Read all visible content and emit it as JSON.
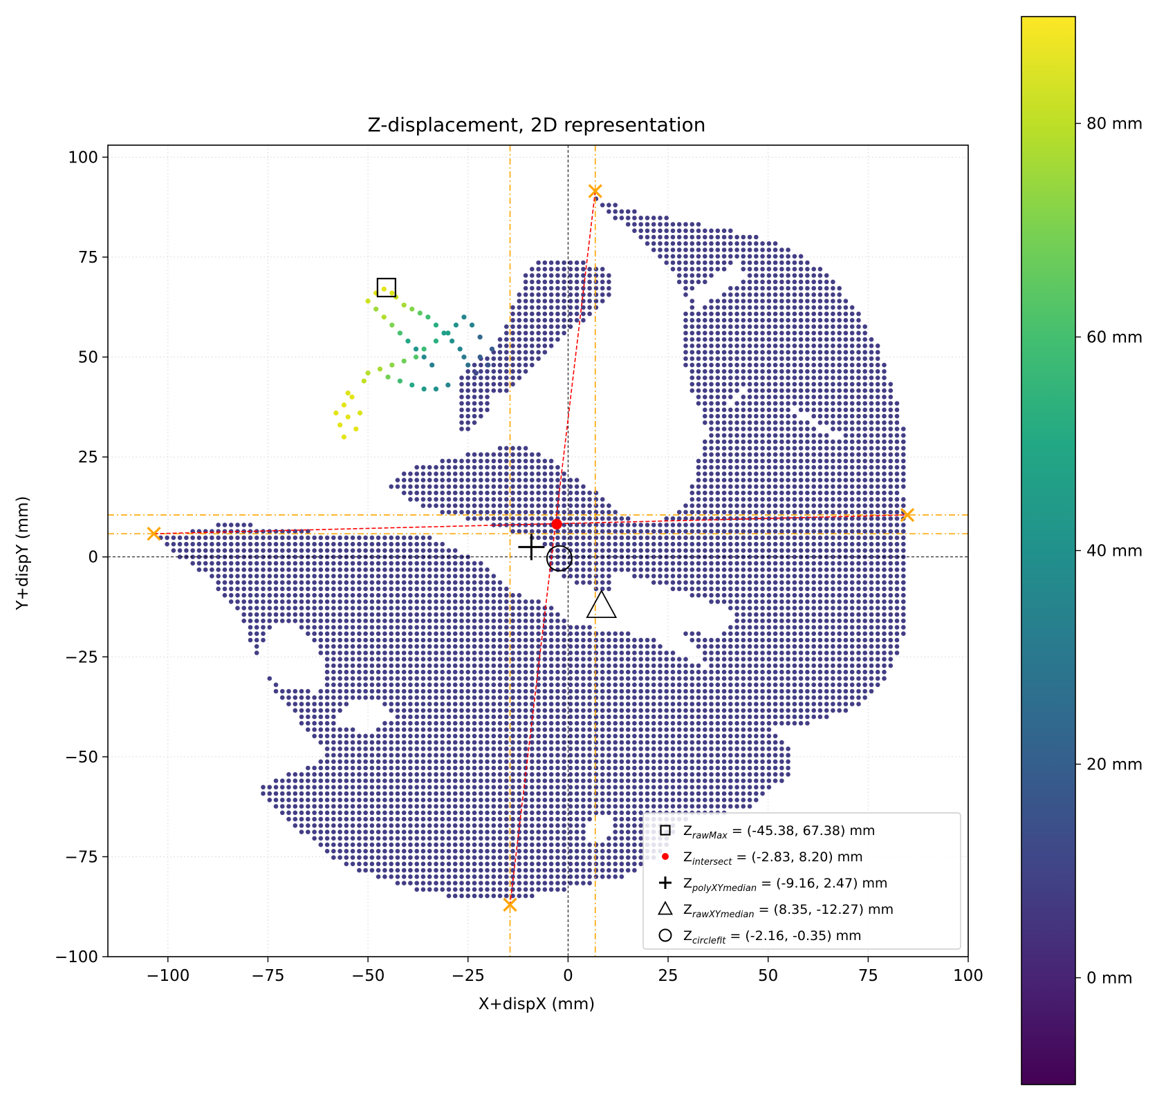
{
  "chart_data": {
    "type": "scatter",
    "title": "Z-displacement, 2D representation",
    "xlabel": "X+dispX (mm)",
    "ylabel": "Y+dispY (mm)",
    "xlim": [
      -115,
      100
    ],
    "ylim": [
      -100,
      103
    ],
    "xticks": [
      -100,
      -75,
      -50,
      -25,
      0,
      25,
      50,
      75,
      100
    ],
    "xtick_labels": [
      "−100",
      "−75",
      "−50",
      "−25",
      "0",
      "25",
      "50",
      "75",
      "100"
    ],
    "yticks": [
      -100,
      -75,
      -50,
      -25,
      0,
      25,
      50,
      75,
      100
    ],
    "ytick_labels": [
      "−100",
      "−75",
      "−50",
      "−25",
      "0",
      "25",
      "50",
      "75",
      "100"
    ],
    "grid": true,
    "legend_position": "lower-right",
    "colorbar": {
      "colormap": "viridis",
      "range": [
        -10,
        90
      ],
      "ticks": [
        0,
        20,
        40,
        60,
        80
      ],
      "tick_labels": [
        "0 mm",
        "20 mm",
        "40 mm",
        "60 mm",
        "80 mm"
      ]
    },
    "point_cloud_colors": {
      "base": "#433e85",
      "dark": "#440154"
    },
    "markers": [
      {
        "base": "Z",
        "sub": "rawMax",
        "rest": " = (-45.38, 67.38) mm",
        "x": -45.38,
        "y": 67.38,
        "symbol": "square"
      },
      {
        "base": "Z",
        "sub": "intersect",
        "rest": " = (-2.83, 8.20) mm",
        "x": -2.83,
        "y": 8.2,
        "symbol": "red-dot"
      },
      {
        "base": "Z",
        "sub": "polyXYmedian",
        "rest": " = (-9.16, 2.47) mm",
        "x": -9.16,
        "y": 2.47,
        "symbol": "plus"
      },
      {
        "base": "Z",
        "sub": "rawXYmedian",
        "rest": " = (8.35, -12.27) mm",
        "x": 8.35,
        "y": -12.27,
        "symbol": "triangle"
      },
      {
        "base": "Z",
        "sub": "circlefit",
        "rest": " = (-2.16, -0.35) mm",
        "x": -2.16,
        "y": -0.35,
        "symbol": "circle"
      }
    ],
    "extreme_points": [
      {
        "x": 6.8,
        "y": 91.5
      },
      {
        "x": -14.5,
        "y": -87.0
      },
      {
        "x": -103.5,
        "y": 5.8
      },
      {
        "x": 84.8,
        "y": 10.5
      }
    ],
    "guide_lines": {
      "vertical_x": [
        -14.5,
        6.8
      ],
      "horizontal_y": [
        5.8,
        10.5
      ],
      "color": "#ffa500"
    },
    "intersect_lines": {
      "color": "#ff0000"
    }
  }
}
